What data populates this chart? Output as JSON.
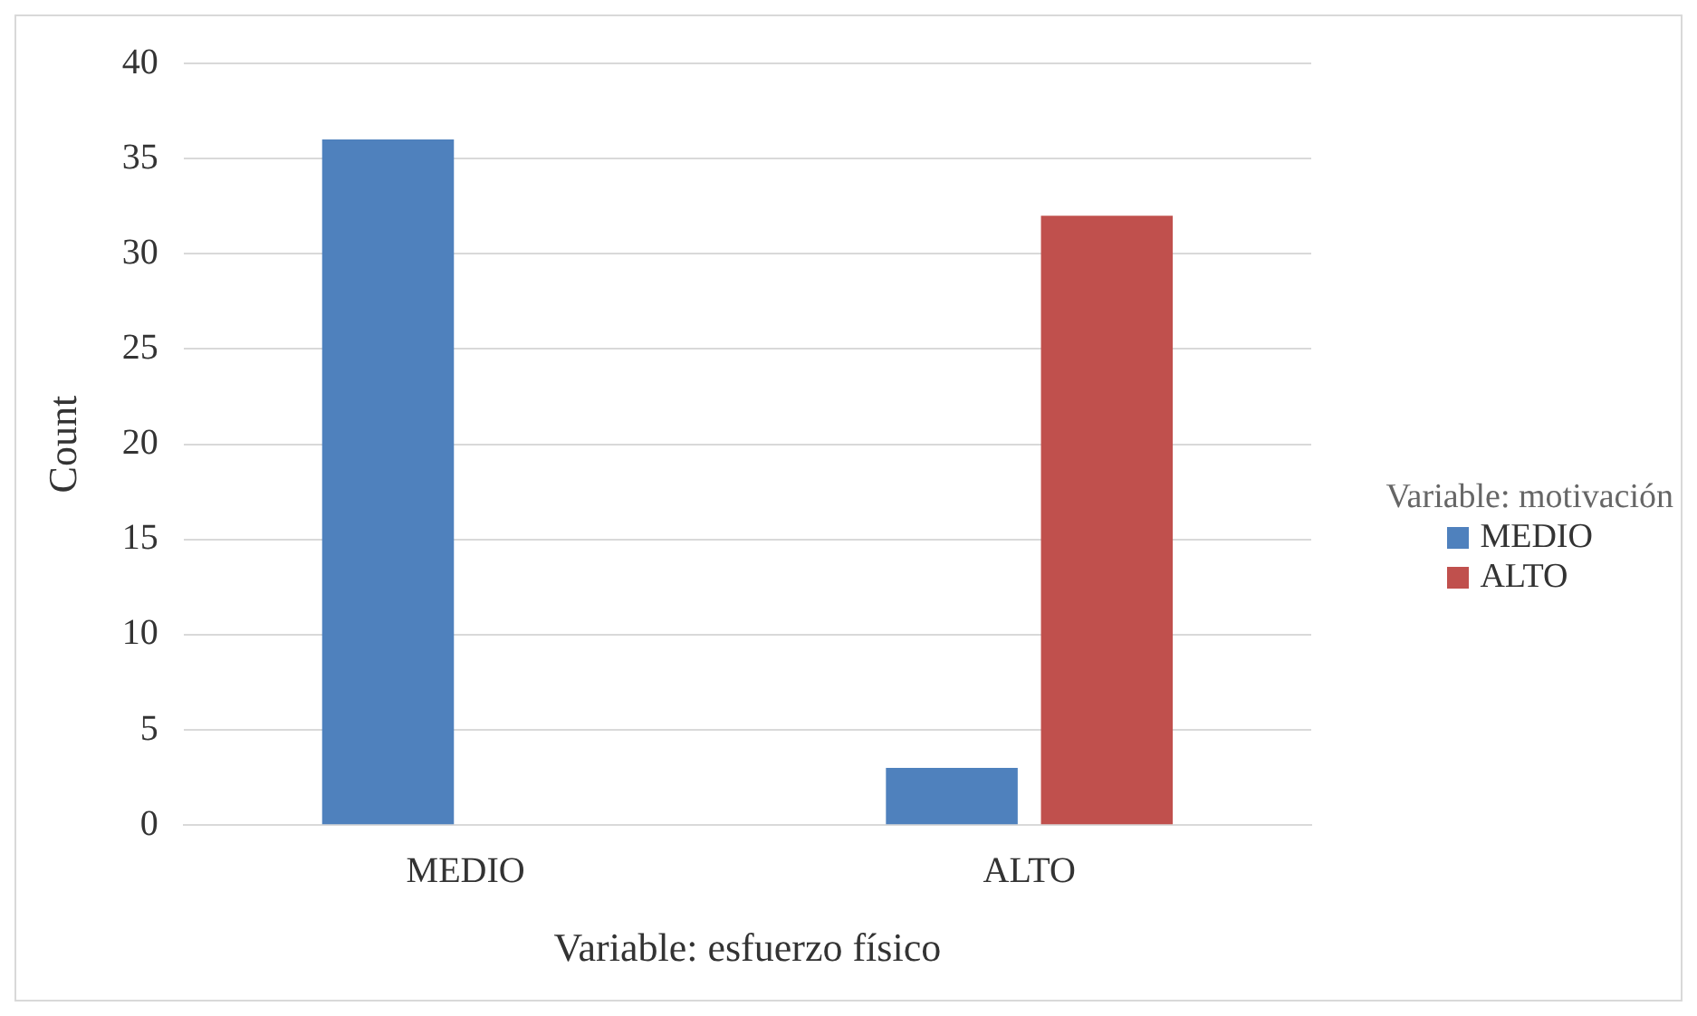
{
  "chart_data": {
    "type": "bar",
    "xlabel": "Variable: esfuerzo físico",
    "ylabel": "Count",
    "legend_title": "Variable: motivación",
    "categories": [
      "MEDIO",
      "ALTO"
    ],
    "series": [
      {
        "name": "MEDIO",
        "color": "#4f81bd",
        "values": [
          36,
          3
        ]
      },
      {
        "name": "ALTO",
        "color": "#c0504d",
        "values": [
          0,
          32
        ]
      }
    ],
    "ylim": [
      0,
      40
    ],
    "yticks": [
      0,
      5,
      10,
      15,
      20,
      25,
      30,
      35,
      40
    ],
    "grid": "y",
    "legend": "right"
  }
}
